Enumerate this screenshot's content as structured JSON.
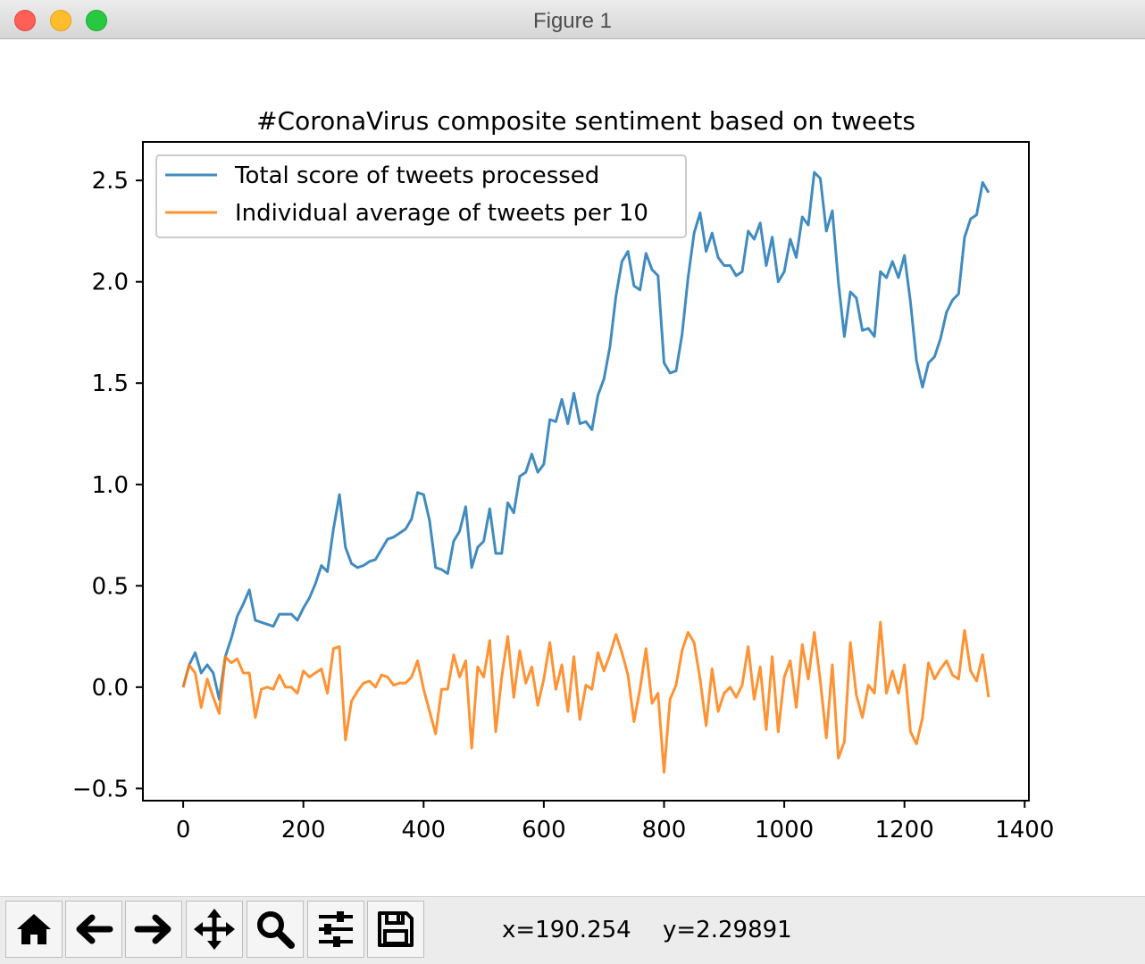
{
  "window": {
    "title": "Figure 1"
  },
  "toolbar": {
    "buttons": [
      {
        "name": "home",
        "icon": "home-icon"
      },
      {
        "name": "back",
        "icon": "arrow-left-icon"
      },
      {
        "name": "forward",
        "icon": "arrow-right-icon"
      },
      {
        "name": "pan",
        "icon": "move-icon"
      },
      {
        "name": "zoom",
        "icon": "zoom-icon"
      },
      {
        "name": "configure",
        "icon": "sliders-icon"
      },
      {
        "name": "save",
        "icon": "save-icon"
      }
    ],
    "x_readout": "x=190.254",
    "y_readout": "y=2.29891"
  },
  "chart_data": {
    "type": "line",
    "title": "#CoronaVirus composite sentiment based on tweets",
    "xlabel": "",
    "ylabel": "",
    "xlim": [
      -67,
      1407
    ],
    "ylim": [
      -0.56,
      2.69
    ],
    "xticks": [
      0,
      200,
      400,
      600,
      800,
      1000,
      1200,
      1400
    ],
    "xtick_labels": [
      "0",
      "200",
      "400",
      "600",
      "800",
      "1000",
      "1200",
      "1400"
    ],
    "yticks": [
      -0.5,
      0.0,
      0.5,
      1.0,
      1.5,
      2.0,
      2.5
    ],
    "ytick_labels": [
      "−0.5",
      "0.0",
      "0.5",
      "1.0",
      "1.5",
      "2.0",
      "2.5"
    ],
    "grid": false,
    "legend_position": "upper-left",
    "x": [
      0,
      10,
      20,
      30,
      40,
      50,
      60,
      70,
      80,
      90,
      100,
      110,
      120,
      130,
      140,
      150,
      160,
      170,
      180,
      190,
      200,
      210,
      220,
      230,
      240,
      250,
      260,
      270,
      280,
      290,
      300,
      310,
      320,
      330,
      340,
      350,
      360,
      370,
      380,
      390,
      400,
      410,
      420,
      430,
      440,
      450,
      460,
      470,
      480,
      490,
      500,
      510,
      520,
      530,
      540,
      550,
      560,
      570,
      580,
      590,
      600,
      610,
      620,
      630,
      640,
      650,
      660,
      670,
      680,
      690,
      700,
      710,
      720,
      730,
      740,
      750,
      760,
      770,
      780,
      790,
      800,
      810,
      820,
      830,
      840,
      850,
      860,
      870,
      880,
      890,
      900,
      910,
      920,
      930,
      940,
      950,
      960,
      970,
      980,
      990,
      1000,
      1010,
      1020,
      1030,
      1040,
      1050,
      1060,
      1070,
      1080,
      1090,
      1100,
      1110,
      1120,
      1130,
      1140,
      1150,
      1160,
      1170,
      1180,
      1190,
      1200,
      1210,
      1220,
      1230,
      1240,
      1250,
      1260,
      1270,
      1280,
      1290,
      1300,
      1310,
      1320,
      1330,
      1340
    ],
    "series": [
      {
        "name": "Total score of tweets processed",
        "color": "#1f77b4",
        "values": [
          0.0,
          0.11,
          0.17,
          0.07,
          0.11,
          0.07,
          -0.06,
          0.15,
          0.24,
          0.35,
          0.41,
          0.48,
          0.33,
          0.32,
          0.31,
          0.3,
          0.36,
          0.36,
          0.36,
          0.33,
          0.39,
          0.44,
          0.51,
          0.6,
          0.57,
          0.78,
          0.95,
          0.69,
          0.61,
          0.59,
          0.6,
          0.62,
          0.63,
          0.68,
          0.73,
          0.74,
          0.76,
          0.78,
          0.83,
          0.96,
          0.95,
          0.82,
          0.59,
          0.58,
          0.56,
          0.72,
          0.77,
          0.89,
          0.59,
          0.69,
          0.72,
          0.88,
          0.66,
          0.66,
          0.91,
          0.86,
          1.04,
          1.06,
          1.15,
          1.06,
          1.1,
          1.32,
          1.31,
          1.42,
          1.3,
          1.45,
          1.3,
          1.31,
          1.27,
          1.44,
          1.52,
          1.68,
          1.93,
          2.1,
          2.15,
          1.98,
          1.96,
          2.14,
          2.06,
          2.03,
          1.6,
          1.55,
          1.56,
          1.74,
          2.02,
          2.24,
          2.34,
          2.15,
          2.24,
          2.12,
          2.08,
          2.08,
          2.03,
          2.05,
          2.25,
          2.21,
          2.29,
          2.08,
          2.22,
          2.0,
          2.05,
          2.21,
          2.12,
          2.32,
          2.28,
          2.54,
          2.51,
          2.25,
          2.35,
          2.0,
          1.73,
          1.95,
          1.92,
          1.76,
          1.77,
          1.73,
          2.05,
          2.02,
          2.1,
          2.02,
          2.13,
          1.9,
          1.61,
          1.48,
          1.6,
          1.63,
          1.72,
          1.85,
          1.91,
          1.94,
          2.22,
          2.31,
          2.33,
          2.49,
          2.44
        ]
      },
      {
        "name": "Individual average of tweets per 10",
        "color": "#ff7f0e",
        "values": [
          0.0,
          0.11,
          0.07,
          -0.1,
          0.04,
          -0.05,
          -0.13,
          0.15,
          0.12,
          0.14,
          0.07,
          0.07,
          -0.15,
          -0.01,
          0.0,
          -0.01,
          0.06,
          0.0,
          0.0,
          -0.03,
          0.08,
          0.05,
          0.07,
          0.09,
          -0.03,
          0.19,
          0.2,
          -0.26,
          -0.07,
          -0.02,
          0.02,
          0.03,
          0.0,
          0.06,
          0.05,
          0.01,
          0.02,
          0.02,
          0.05,
          0.13,
          -0.01,
          -0.12,
          -0.23,
          -0.01,
          -0.01,
          0.16,
          0.05,
          0.13,
          -0.3,
          0.1,
          0.05,
          0.23,
          -0.22,
          0.05,
          0.25,
          -0.05,
          0.18,
          0.02,
          0.1,
          -0.09,
          0.04,
          0.22,
          -0.01,
          0.11,
          -0.12,
          0.15,
          -0.16,
          0.01,
          -0.01,
          0.17,
          0.08,
          0.16,
          0.26,
          0.17,
          0.06,
          -0.17,
          -0.01,
          0.19,
          -0.08,
          -0.03,
          -0.42,
          -0.06,
          0.01,
          0.18,
          0.27,
          0.22,
          0.04,
          -0.19,
          0.09,
          -0.12,
          -0.03,
          0.0,
          -0.05,
          0.01,
          0.2,
          -0.06,
          0.1,
          -0.21,
          0.15,
          -0.22,
          0.05,
          0.13,
          -0.1,
          0.21,
          0.04,
          0.27,
          0.03,
          -0.25,
          0.11,
          -0.35,
          -0.27,
          0.22,
          -0.04,
          -0.15,
          0.01,
          -0.03,
          0.32,
          -0.03,
          0.08,
          -0.03,
          0.11,
          -0.22,
          -0.28,
          -0.15,
          0.12,
          0.04,
          0.09,
          0.13,
          0.06,
          0.04,
          0.28,
          0.08,
          0.03,
          0.16,
          -0.05
        ]
      }
    ]
  }
}
